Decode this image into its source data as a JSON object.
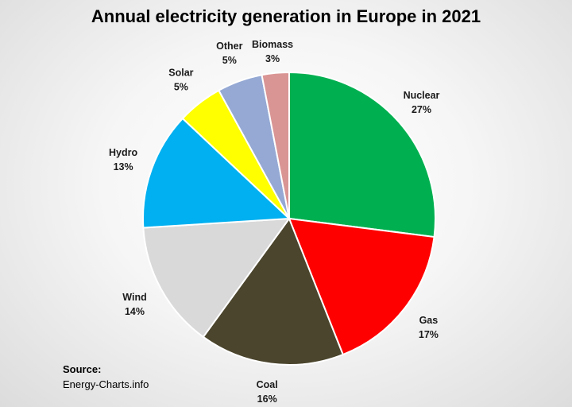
{
  "chart_data": {
    "type": "pie",
    "title": "Annual electricity generation in Europe in 2021",
    "slices": [
      {
        "label": "Nuclear",
        "value": 27,
        "display": "27%",
        "color": "#00b050"
      },
      {
        "label": "Gas",
        "value": 17,
        "display": "17%",
        "color": "#ff0000"
      },
      {
        "label": "Coal",
        "value": 16,
        "display": "16%",
        "color": "#4b452d"
      },
      {
        "label": "Wind",
        "value": 14,
        "display": "14%",
        "color": "#d9d9d9"
      },
      {
        "label": "Hydro",
        "value": 13,
        "display": "13%",
        "color": "#00b0f0"
      },
      {
        "label": "Solar",
        "value": 5,
        "display": "5%",
        "color": "#ffff00"
      },
      {
        "label": "Other",
        "value": 5,
        "display": "5%",
        "color": "#95a9d4"
      },
      {
        "label": "Biomass",
        "value": 3,
        "display": "3%",
        "color": "#d99594"
      }
    ],
    "start_angle_deg": 0,
    "direction": "clockwise"
  },
  "source": {
    "label": "Source:",
    "text": "Energy-Charts.info"
  }
}
